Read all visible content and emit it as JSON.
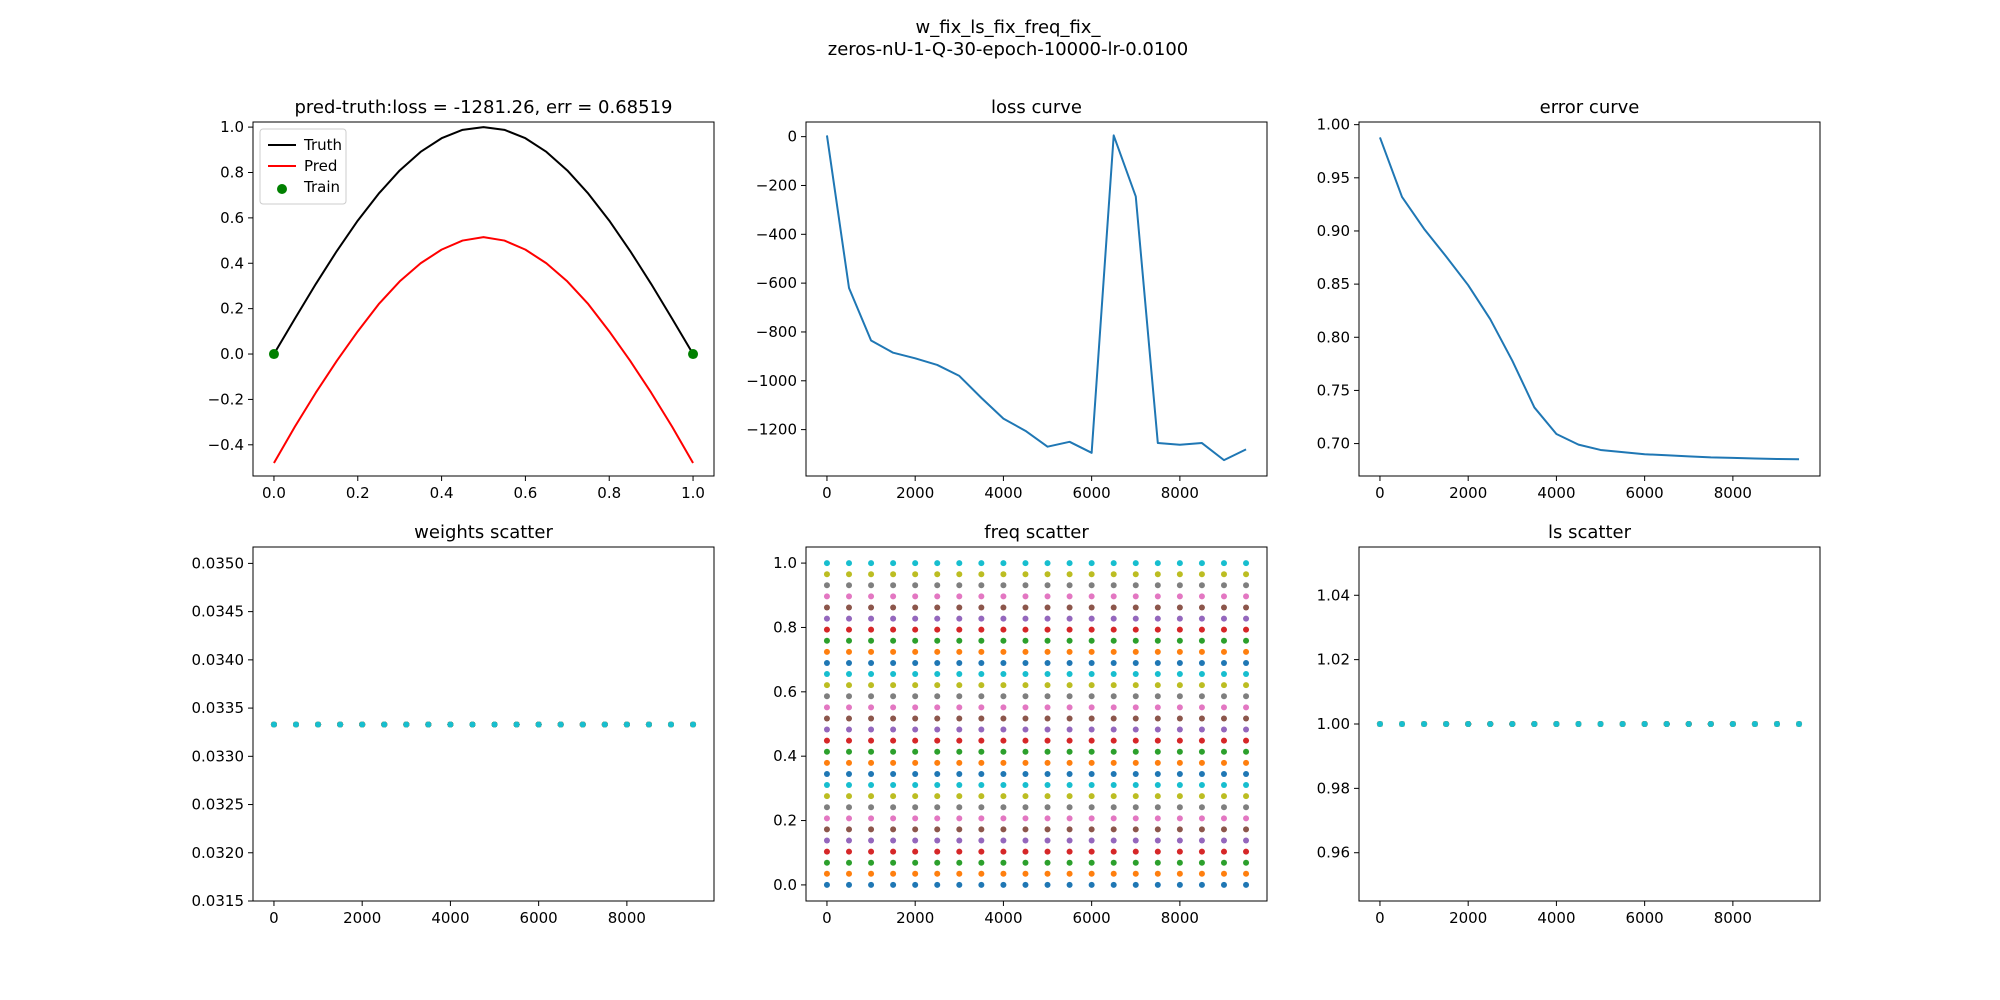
{
  "suptitle": [
    "w_fix_ls_fix_freq_fix_",
    "zeros-nU-1-Q-30-epoch-10000-lr-0.0100"
  ],
  "colors": {
    "truth": "#000000",
    "pred": "#ff0000",
    "train": "#008000",
    "line": "#1f77b4",
    "tab10": [
      "#1f77b4",
      "#ff7f0e",
      "#2ca02c",
      "#d62728",
      "#9467bd",
      "#8c564b",
      "#e377c2",
      "#7f7f7f",
      "#bcbd22",
      "#17becf"
    ]
  },
  "chart_data": [
    {
      "id": "pred-truth",
      "type": "line",
      "title": "pred-truth:loss = -1281.26, err = 0.68519",
      "xlim": [
        -0.05,
        1.05
      ],
      "ylim": [
        -0.5375,
        1.0225
      ],
      "xticks": [
        0.0,
        0.2,
        0.4,
        0.6,
        0.8,
        1.0
      ],
      "xtick_labels": [
        "0.0",
        "0.2",
        "0.4",
        "0.6",
        "0.8",
        "1.0"
      ],
      "yticks": [
        -0.4,
        -0.2,
        0.0,
        0.2,
        0.4,
        0.6,
        0.8,
        1.0
      ],
      "ytick_labels": [
        "−0.4",
        "−0.2",
        "0.0",
        "0.2",
        "0.4",
        "0.6",
        "0.8",
        "1.0"
      ],
      "legend": {
        "placement": "upper-left",
        "entries": [
          "Truth",
          "Pred",
          "Train"
        ]
      },
      "series": [
        {
          "name": "Truth",
          "style": "line",
          "x": [
            0.0,
            0.05,
            0.1,
            0.15,
            0.2,
            0.25,
            0.3,
            0.35,
            0.4,
            0.45,
            0.5,
            0.55,
            0.6,
            0.65,
            0.7,
            0.75,
            0.8,
            0.85,
            0.9,
            0.95,
            1.0
          ],
          "y": [
            0.0,
            0.156,
            0.309,
            0.454,
            0.588,
            0.707,
            0.809,
            0.891,
            0.951,
            0.988,
            1.0,
            0.988,
            0.951,
            0.891,
            0.809,
            0.707,
            0.588,
            0.454,
            0.309,
            0.156,
            0.0
          ]
        },
        {
          "name": "Pred",
          "style": "line",
          "x": [
            0.0,
            0.05,
            0.1,
            0.15,
            0.2,
            0.25,
            0.3,
            0.35,
            0.4,
            0.45,
            0.5,
            0.55,
            0.6,
            0.65,
            0.7,
            0.75,
            0.8,
            0.85,
            0.9,
            0.95,
            1.0
          ],
          "y": [
            -0.48,
            -0.32,
            -0.17,
            -0.03,
            0.1,
            0.22,
            0.32,
            0.4,
            0.46,
            0.5,
            0.515,
            0.5,
            0.46,
            0.4,
            0.32,
            0.22,
            0.1,
            -0.03,
            -0.17,
            -0.32,
            -0.48
          ]
        },
        {
          "name": "Train",
          "style": "points",
          "x": [
            0.0,
            1.0
          ],
          "y": [
            0.0,
            0.0
          ]
        }
      ]
    },
    {
      "id": "loss-curve",
      "type": "line",
      "title": "loss curve",
      "xlim": [
        -475,
        9975
      ],
      "ylim": [
        -1390,
        60
      ],
      "xticks": [
        0,
        2000,
        4000,
        6000,
        8000
      ],
      "xtick_labels": [
        "0",
        "2000",
        "4000",
        "6000",
        "8000"
      ],
      "yticks": [
        -1200,
        -1000,
        -800,
        -600,
        -400,
        -200,
        0
      ],
      "ytick_labels": [
        "−1200",
        "−1000",
        "−800",
        "−600",
        "−400",
        "−200",
        "0"
      ],
      "series": [
        {
          "style": "line",
          "x": [
            0,
            500,
            1000,
            1500,
            2000,
            2500,
            3000,
            3500,
            4000,
            4500,
            5000,
            5500,
            6000,
            6500,
            7000,
            7500,
            8000,
            8500,
            9000,
            9500
          ],
          "y": [
            5,
            -620,
            -835,
            -885,
            -908,
            -935,
            -980,
            -1070,
            -1155,
            -1205,
            -1270,
            -1250,
            -1295,
            5,
            -245,
            -1255,
            -1262,
            -1255,
            -1325,
            -1281
          ]
        }
      ]
    },
    {
      "id": "error-curve",
      "type": "line",
      "title": "error curve",
      "xlim": [
        -475,
        9975
      ],
      "ylim": [
        0.6695,
        1.0025
      ],
      "xticks": [
        0,
        2000,
        4000,
        6000,
        8000
      ],
      "xtick_labels": [
        "0",
        "2000",
        "4000",
        "6000",
        "8000"
      ],
      "yticks": [
        0.7,
        0.75,
        0.8,
        0.85,
        0.9,
        0.95,
        1.0
      ],
      "ytick_labels": [
        "0.70",
        "0.75",
        "0.80",
        "0.85",
        "0.90",
        "0.95",
        "1.00"
      ],
      "series": [
        {
          "style": "line",
          "x": [
            0,
            500,
            1000,
            1500,
            2000,
            2500,
            3000,
            3500,
            4000,
            4500,
            5000,
            5500,
            6000,
            6500,
            7000,
            7500,
            8000,
            8500,
            9000,
            9500
          ],
          "y": [
            0.988,
            0.932,
            0.902,
            0.876,
            0.849,
            0.817,
            0.778,
            0.734,
            0.709,
            0.699,
            0.694,
            0.692,
            0.69,
            0.689,
            0.688,
            0.687,
            0.6865,
            0.686,
            0.6855,
            0.6852
          ]
        }
      ]
    },
    {
      "id": "weights-scatter",
      "type": "scatter",
      "title": "weights scatter",
      "xlim": [
        -475,
        9975
      ],
      "ylim": [
        0.0315,
        0.03517
      ],
      "xticks": [
        0,
        2000,
        4000,
        6000,
        8000
      ],
      "xtick_labels": [
        "0",
        "2000",
        "4000",
        "6000",
        "8000"
      ],
      "yticks": [
        0.0315,
        0.032,
        0.0325,
        0.033,
        0.0335,
        0.034,
        0.0345,
        0.035
      ],
      "ytick_labels": [
        "0.0315",
        "0.0320",
        "0.0325",
        "0.0330",
        "0.0335",
        "0.0340",
        "0.0345",
        "0.0350"
      ],
      "x": [
        0,
        500,
        1000,
        1500,
        2000,
        2500,
        3000,
        3500,
        4000,
        4500,
        5000,
        5500,
        6000,
        6500,
        7000,
        7500,
        8000,
        8500,
        9000,
        9500
      ],
      "levels": [
        0.03333
      ],
      "n_series": 30
    },
    {
      "id": "freq-scatter",
      "type": "scatter",
      "title": "freq scatter",
      "xlim": [
        -475,
        9975
      ],
      "ylim": [
        -0.05,
        1.05
      ],
      "xticks": [
        0,
        2000,
        4000,
        6000,
        8000
      ],
      "xtick_labels": [
        "0",
        "2000",
        "4000",
        "6000",
        "8000"
      ],
      "yticks": [
        0.0,
        0.2,
        0.4,
        0.6,
        0.8,
        1.0
      ],
      "ytick_labels": [
        "0.0",
        "0.2",
        "0.4",
        "0.6",
        "0.8",
        "1.0"
      ],
      "x": [
        0,
        500,
        1000,
        1500,
        2000,
        2500,
        3000,
        3500,
        4000,
        4500,
        5000,
        5500,
        6000,
        6500,
        7000,
        7500,
        8000,
        8500,
        9000,
        9500
      ],
      "levels": [
        0.0,
        0.0345,
        0.069,
        0.1034,
        0.1379,
        0.1724,
        0.2069,
        0.2414,
        0.2759,
        0.3103,
        0.3448,
        0.3793,
        0.4138,
        0.4483,
        0.4828,
        0.5172,
        0.5517,
        0.5862,
        0.6207,
        0.6552,
        0.6897,
        0.7241,
        0.7586,
        0.7931,
        0.8276,
        0.8621,
        0.8966,
        0.931,
        0.9655,
        1.0
      ],
      "n_series": 30
    },
    {
      "id": "ls-scatter",
      "type": "scatter",
      "title": "ls scatter",
      "xlim": [
        -475,
        9975
      ],
      "ylim": [
        0.945,
        1.055
      ],
      "xticks": [
        0,
        2000,
        4000,
        6000,
        8000
      ],
      "xtick_labels": [
        "0",
        "2000",
        "4000",
        "6000",
        "8000"
      ],
      "yticks": [
        0.96,
        0.98,
        1.0,
        1.02,
        1.04
      ],
      "ytick_labels": [
        "0.96",
        "0.98",
        "1.00",
        "1.02",
        "1.04"
      ],
      "x": [
        0,
        500,
        1000,
        1500,
        2000,
        2500,
        3000,
        3500,
        4000,
        4500,
        5000,
        5500,
        6000,
        6500,
        7000,
        7500,
        8000,
        8500,
        9000,
        9500
      ],
      "levels": [
        1.0
      ],
      "n_series": 30
    }
  ]
}
